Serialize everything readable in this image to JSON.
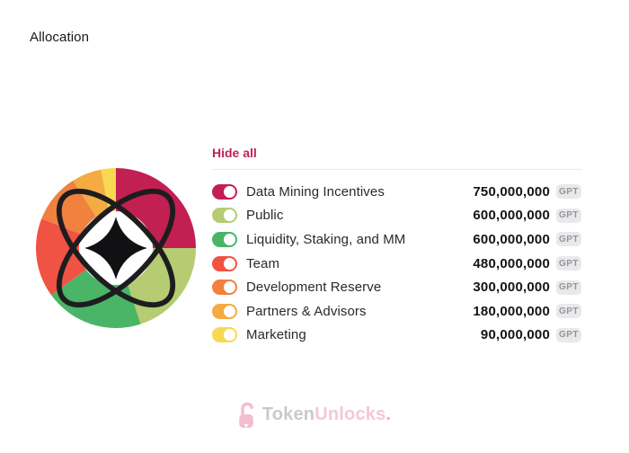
{
  "header": {
    "title": "Allocation"
  },
  "legend": {
    "hide_all_label": "Hide all",
    "items": [
      {
        "label": "Data Mining Incentives",
        "value": "750,000,000",
        "unit": "GPT",
        "color": "#c21f53",
        "toggle_on": true
      },
      {
        "label": "Public",
        "value": "600,000,000",
        "unit": "GPT",
        "color": "#b6cc72",
        "toggle_on": true
      },
      {
        "label": "Liquidity, Staking, and MM",
        "value": "600,000,000",
        "unit": "GPT",
        "color": "#4ab467",
        "toggle_on": true
      },
      {
        "label": "Team",
        "value": "480,000,000",
        "unit": "GPT",
        "color": "#f05244",
        "toggle_on": true
      },
      {
        "label": "Development Reserve",
        "value": "300,000,000",
        "unit": "GPT",
        "color": "#f0813f",
        "toggle_on": true
      },
      {
        "label": "Partners & Advisors",
        "value": "180,000,000",
        "unit": "GPT",
        "color": "#f3ab42",
        "toggle_on": true
      },
      {
        "label": "Marketing",
        "value": "90,000,000",
        "unit": "GPT",
        "color": "#f8d851",
        "toggle_on": true
      }
    ]
  },
  "chart_data": {
    "type": "pie",
    "donut": true,
    "title": "Allocation",
    "unit": "GPT",
    "categories": [
      "Data Mining Incentives",
      "Public",
      "Liquidity, Staking, and MM",
      "Team",
      "Development Reserve",
      "Partners & Advisors",
      "Marketing"
    ],
    "values": [
      750000000,
      600000000,
      600000000,
      480000000,
      300000000,
      180000000,
      90000000
    ],
    "display_values": [
      "750,000,000",
      "600,000,000",
      "600,000,000",
      "480,000,000",
      "300,000,000",
      "180,000,000",
      "90,000,000"
    ],
    "percentages": [
      25,
      20,
      20,
      16,
      10,
      6,
      3
    ],
    "colors": [
      "#c21f53",
      "#b6cc72",
      "#4ab467",
      "#f05244",
      "#f0813f",
      "#f3ab42",
      "#f8d851"
    ],
    "start_angle_deg": 0,
    "direction": "clockwise",
    "inner_radius_ratio": 0.46,
    "legend_position": "right"
  },
  "footer": {
    "brand_part1": "Token",
    "brand_part2": "Unlocks",
    "brand_dot": ".",
    "lock_color": "#f3bfce"
  },
  "colors": {
    "hide_all_link": "#c2205a",
    "badge_bg": "#e9e9ec",
    "badge_text": "#95959c",
    "divider": "#e7e7e9",
    "value_text": "#141417",
    "label_text": "#2a2a2e"
  }
}
